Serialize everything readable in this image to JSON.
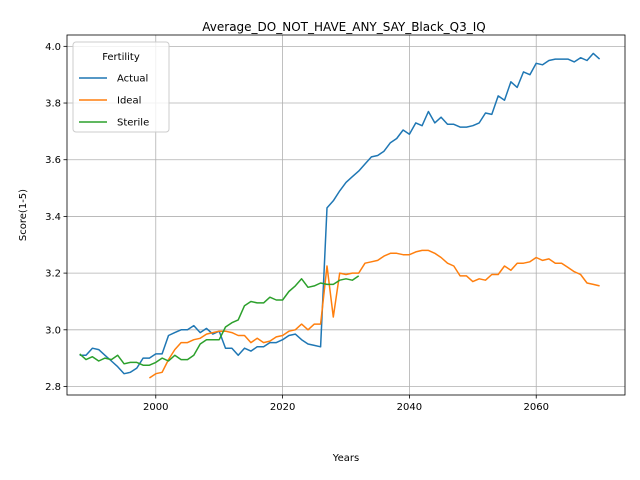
{
  "chart_data": {
    "type": "line",
    "title": "Average_DO_NOT_HAVE_ANY_SAY_Black_Q3_IQ",
    "xlabel": "Years",
    "ylabel": "Score(1-5)",
    "xlim": [
      1986,
      2074
    ],
    "ylim": [
      2.77,
      4.04
    ],
    "xticks": [
      2000,
      2020,
      2040,
      2060
    ],
    "yticks": [
      2.8,
      3.0,
      3.2,
      3.4,
      3.6,
      3.8,
      4.0
    ],
    "ytick_labels": [
      "2.8",
      "3.0",
      "3.2",
      "3.4",
      "3.6",
      "3.8",
      "4.0"
    ],
    "grid": true,
    "legend": {
      "title": "Fertility",
      "placement": "top-left"
    },
    "series": [
      {
        "name": "Actual",
        "color": "#1f77b4",
        "x": [
          1988,
          1989,
          1990,
          1991,
          1992,
          1993,
          1994,
          1995,
          1996,
          1997,
          1998,
          1999,
          2000,
          2001,
          2002,
          2003,
          2004,
          2005,
          2006,
          2007,
          2008,
          2009,
          2010,
          2011,
          2012,
          2013,
          2014,
          2015,
          2016,
          2017,
          2018,
          2019,
          2020,
          2021,
          2022,
          2023,
          2024,
          2025,
          2026,
          2027,
          2028,
          2029,
          2030,
          2031,
          2032,
          2033,
          2034,
          2035,
          2036,
          2037,
          2038,
          2039,
          2040,
          2041,
          2042,
          2043,
          2044,
          2045,
          2046,
          2047,
          2048,
          2049,
          2050,
          2051,
          2052,
          2053,
          2054,
          2055,
          2056,
          2057,
          2058,
          2059,
          2060,
          2061,
          2062,
          2063,
          2064,
          2065,
          2066,
          2067,
          2068,
          2069,
          2070
        ],
        "y": [
          2.91,
          2.91,
          2.935,
          2.93,
          2.91,
          2.89,
          2.87,
          2.845,
          2.85,
          2.865,
          2.9,
          2.9,
          2.915,
          2.915,
          2.98,
          2.99,
          3.0,
          3.0,
          3.015,
          2.99,
          3.005,
          2.985,
          2.995,
          2.935,
          2.935,
          2.91,
          2.935,
          2.925,
          2.94,
          2.94,
          2.955,
          2.955,
          2.965,
          2.98,
          2.985,
          2.965,
          2.95,
          2.945,
          2.94,
          3.43,
          3.455,
          3.49,
          3.52,
          3.54,
          3.56,
          3.585,
          3.61,
          3.615,
          3.63,
          3.66,
          3.675,
          3.705,
          3.69,
          3.73,
          3.72,
          3.77,
          3.73,
          3.75,
          3.725,
          3.725,
          3.715,
          3.715,
          3.72,
          3.73,
          3.765,
          3.76,
          3.825,
          3.81,
          3.875,
          3.855,
          3.91,
          3.9,
          3.94,
          3.935,
          3.95,
          3.955,
          3.955,
          3.955,
          3.945,
          3.96,
          3.95,
          3.975,
          3.955
        ]
      },
      {
        "name": "Ideal",
        "color": "#ff7f0e",
        "x": [
          1999,
          2000,
          2001,
          2002,
          2003,
          2004,
          2005,
          2006,
          2007,
          2008,
          2009,
          2010,
          2011,
          2012,
          2013,
          2014,
          2015,
          2016,
          2017,
          2018,
          2019,
          2020,
          2021,
          2022,
          2023,
          2024,
          2025,
          2026,
          2027,
          2028,
          2029,
          2030,
          2031,
          2032,
          2033,
          2034,
          2035,
          2036,
          2037,
          2038,
          2039,
          2040,
          2041,
          2042,
          2043,
          2044,
          2045,
          2046,
          2047,
          2048,
          2049,
          2050,
          2051,
          2052,
          2053,
          2054,
          2055,
          2056,
          2057,
          2058,
          2059,
          2060,
          2061,
          2062,
          2063,
          2064,
          2065,
          2066,
          2067,
          2068,
          2069,
          2070
        ],
        "y": [
          2.83,
          2.845,
          2.85,
          2.895,
          2.93,
          2.955,
          2.955,
          2.965,
          2.97,
          2.985,
          2.99,
          2.995,
          2.995,
          2.99,
          2.98,
          2.98,
          2.955,
          2.97,
          2.955,
          2.96,
          2.975,
          2.98,
          2.995,
          3.0,
          3.02,
          3.0,
          3.02,
          3.02,
          3.225,
          3.045,
          3.2,
          3.195,
          3.2,
          3.2,
          3.235,
          3.24,
          3.245,
          3.26,
          3.27,
          3.27,
          3.265,
          3.265,
          3.275,
          3.28,
          3.28,
          3.27,
          3.255,
          3.235,
          3.225,
          3.19,
          3.19,
          3.17,
          3.18,
          3.175,
          3.195,
          3.195,
          3.225,
          3.21,
          3.235,
          3.235,
          3.24,
          3.255,
          3.245,
          3.25,
          3.235,
          3.235,
          3.22,
          3.205,
          3.195,
          3.165,
          3.16,
          3.155
        ]
      },
      {
        "name": "Sterile",
        "color": "#2ca02c",
        "x": [
          1988,
          1989,
          1990,
          1991,
          1992,
          1993,
          1994,
          1995,
          1996,
          1997,
          1998,
          1999,
          2000,
          2001,
          2002,
          2003,
          2004,
          2005,
          2006,
          2007,
          2008,
          2009,
          2010,
          2011,
          2012,
          2013,
          2014,
          2015,
          2016,
          2017,
          2018,
          2019,
          2020,
          2021,
          2022,
          2023,
          2024,
          2025,
          2026,
          2027,
          2028,
          2029,
          2030,
          2031,
          2032
        ],
        "y": [
          2.915,
          2.895,
          2.905,
          2.89,
          2.9,
          2.895,
          2.91,
          2.88,
          2.885,
          2.885,
          2.875,
          2.875,
          2.885,
          2.9,
          2.89,
          2.91,
          2.895,
          2.895,
          2.91,
          2.95,
          2.965,
          2.965,
          2.965,
          3.01,
          3.025,
          3.035,
          3.085,
          3.1,
          3.095,
          3.095,
          3.115,
          3.105,
          3.105,
          3.135,
          3.155,
          3.18,
          3.15,
          3.155,
          3.165,
          3.16,
          3.16,
          3.175,
          3.18,
          3.175,
          3.19
        ]
      }
    ]
  }
}
